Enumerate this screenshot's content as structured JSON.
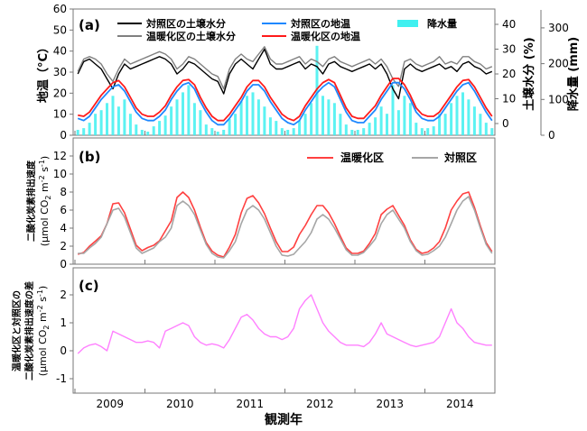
{
  "chart_data": [
    {
      "type": "line",
      "panel_label": "(a)",
      "x": [
        "2009-01",
        "2009-02",
        "2009-03",
        "2009-04",
        "2009-05",
        "2009-06",
        "2009-07",
        "2009-08",
        "2009-09",
        "2009-10",
        "2009-11",
        "2009-12",
        "2010-01",
        "2010-02",
        "2010-03",
        "2010-04",
        "2010-05",
        "2010-06",
        "2010-07",
        "2010-08",
        "2010-09",
        "2010-10",
        "2010-11",
        "2010-12",
        "2011-01",
        "2011-02",
        "2011-03",
        "2011-04",
        "2011-05",
        "2011-06",
        "2011-07",
        "2011-08",
        "2011-09",
        "2011-10",
        "2011-11",
        "2011-12",
        "2012-01",
        "2012-02",
        "2012-03",
        "2012-04",
        "2012-05",
        "2012-06",
        "2012-07",
        "2012-08",
        "2012-09",
        "2012-10",
        "2012-11",
        "2012-12",
        "2013-01",
        "2013-02",
        "2013-03",
        "2013-04",
        "2013-05",
        "2013-06",
        "2013-07",
        "2013-08",
        "2013-09",
        "2013-10",
        "2013-11",
        "2013-12",
        "2014-01",
        "2014-02",
        "2014-03",
        "2014-04",
        "2014-05",
        "2014-06",
        "2014-07",
        "2014-08",
        "2014-09",
        "2014-10",
        "2014-11",
        "2014-12"
      ],
      "ylabel_left": "地温（°C）",
      "ylabel_right": "土壌水分 (%)",
      "ylabel_right2": "降水量 (mm)",
      "ylim_left": [
        0,
        60
      ],
      "ylim_right": [
        0,
        45
      ],
      "ylim_right2": [
        0,
        350
      ],
      "yticks_left": [
        "0",
        "10",
        "20",
        "30",
        "40",
        "50",
        "60"
      ],
      "yticks_right": [
        "0",
        "10",
        "20",
        "30",
        "40"
      ],
      "yticks_right2": [
        "0",
        "100",
        "200",
        "300"
      ],
      "legend_placement": "top",
      "series": [
        {
          "name": "対照区の土壌水分",
          "axis": "right",
          "color": "#000000",
          "values": [
            20,
            25,
            26,
            24,
            22,
            18,
            14,
            20,
            24,
            22,
            23,
            24,
            25,
            26,
            27,
            26,
            24,
            20,
            22,
            25,
            24,
            22,
            20,
            18,
            17,
            12,
            20,
            24,
            26,
            24,
            22,
            26,
            30,
            24,
            22,
            22,
            23,
            24,
            25,
            22,
            24,
            23,
            20,
            24,
            25,
            23,
            22,
            21,
            22,
            23,
            24,
            22,
            24,
            20,
            14,
            10,
            22,
            24,
            22,
            21,
            22,
            23,
            24,
            22,
            23,
            21,
            24,
            25,
            23,
            22,
            20,
            21
          ]
        },
        {
          "name": "温暖化区の土壌水分",
          "axis": "right",
          "color": "#808080",
          "values": [
            21,
            26,
            27,
            26,
            24,
            20,
            17,
            22,
            26,
            24,
            25,
            26,
            27,
            28,
            29,
            28,
            26,
            22,
            24,
            27,
            26,
            24,
            22,
            20,
            19,
            14,
            22,
            26,
            28,
            26,
            25,
            28,
            31,
            26,
            24,
            24,
            25,
            26,
            27,
            24,
            26,
            25,
            23,
            26,
            27,
            25,
            24,
            23,
            24,
            25,
            26,
            24,
            26,
            23,
            18,
            15,
            25,
            26,
            24,
            23,
            24,
            25,
            27,
            24,
            25,
            24,
            27,
            27,
            25,
            24,
            22,
            23
          ]
        },
        {
          "name": "対照区の地温",
          "axis": "left",
          "color": "#1e88ff",
          "values": [
            8,
            7,
            9,
            13,
            17,
            20,
            23,
            24,
            21,
            16,
            11,
            8,
            7,
            7,
            9,
            12,
            17,
            21,
            24,
            25,
            22,
            16,
            11,
            7,
            5,
            5,
            8,
            12,
            16,
            21,
            24,
            24,
            21,
            16,
            12,
            8,
            6,
            5,
            7,
            12,
            16,
            20,
            23,
            25,
            23,
            17,
            11,
            7,
            6,
            6,
            9,
            12,
            17,
            21,
            25,
            25,
            22,
            17,
            11,
            8,
            7,
            7,
            9,
            13,
            17,
            21,
            24,
            25,
            21,
            16,
            11,
            7
          ]
        },
        {
          "name": "温暖化区の地温",
          "axis": "left",
          "color": "#ff1a1a",
          "values": [
            9.5,
            9,
            11,
            15,
            19,
            22,
            25,
            26,
            23,
            18,
            13,
            10,
            9,
            9,
            11,
            14,
            19,
            23,
            26,
            26.5,
            24,
            18,
            13,
            9,
            7,
            7,
            10,
            14,
            18,
            23,
            26,
            26,
            23,
            18,
            14,
            10,
            8,
            7,
            9,
            14,
            18,
            22,
            25,
            26.5,
            25,
            19,
            13,
            9,
            8,
            8,
            11,
            14,
            19,
            23,
            27,
            27,
            24,
            19,
            13,
            10,
            9,
            9,
            11,
            15,
            19,
            23,
            26,
            26.5,
            23,
            18,
            13,
            9
          ]
        },
        {
          "name": "降水量",
          "axis": "right2",
          "type": "bar",
          "color": "#40f0f0",
          "values": [
            15,
            20,
            35,
            60,
            70,
            90,
            110,
            80,
            100,
            60,
            30,
            15,
            10,
            25,
            40,
            55,
            80,
            100,
            120,
            140,
            90,
            70,
            30,
            20,
            10,
            15,
            45,
            60,
            95,
            110,
            120,
            100,
            80,
            50,
            40,
            20,
            15,
            20,
            40,
            60,
            90,
            250,
            110,
            100,
            90,
            60,
            30,
            15,
            15,
            20,
            35,
            50,
            80,
            60,
            140,
            70,
            110,
            90,
            35,
            20,
            20,
            25,
            60,
            60,
            90,
            110,
            120,
            100,
            80,
            60,
            35,
            20
          ]
        }
      ]
    },
    {
      "type": "line",
      "panel_label": "(b)",
      "ylabel": "二酸化炭素排出速度 (μmol CO2 m-2 s-1)",
      "ylabel_line1": "二酸化炭素排出速度",
      "ylabel_line2": "(μmol CO",
      "ylabel_sub": "2",
      "ylabel_mid": " m",
      "ylabel_sup1": "-2",
      "ylabel_mid2": " s",
      "ylabel_sup2": "-1",
      "ylabel_end": ")",
      "ylim": [
        0,
        14
      ],
      "yticks": [
        "0",
        "2",
        "4",
        "6",
        "8",
        "10",
        "12"
      ],
      "legend_placement": "top-right",
      "series": [
        {
          "name": "温暖化区",
          "color": "#ff4040",
          "values": [
            1.1,
            1.3,
            2.0,
            2.55,
            3.15,
            4.5,
            6.7,
            6.8,
            5.7,
            3.9,
            2.1,
            1.5,
            1.85,
            2.1,
            2.6,
            3.7,
            4.8,
            7.4,
            8.0,
            7.4,
            6.0,
            4.1,
            2.4,
            1.45,
            1.0,
            0.8,
            1.9,
            3.3,
            5.7,
            7.3,
            7.6,
            6.8,
            5.6,
            4.0,
            2.5,
            1.4,
            1.4,
            1.9,
            3.3,
            4.3,
            5.5,
            6.5,
            6.5,
            5.7,
            4.5,
            3.1,
            1.8,
            1.2,
            1.2,
            1.45,
            2.3,
            3.4,
            5.5,
            6.1,
            6.5,
            5.4,
            4.3,
            2.7,
            1.65,
            1.2,
            1.35,
            1.8,
            2.5,
            4.0,
            6.0,
            7.0,
            7.8,
            8.0,
            6.3,
            4.25,
            2.4,
            1.4
          ]
        },
        {
          "name": "対照区",
          "color": "#a6a6a6",
          "values": [
            1.2,
            1.2,
            1.8,
            2.3,
            3.0,
            4.5,
            6.0,
            6.2,
            5.2,
            3.5,
            1.8,
            1.2,
            1.5,
            1.8,
            2.5,
            3.0,
            4.0,
            6.5,
            7.0,
            6.5,
            5.5,
            3.8,
            2.2,
            1.2,
            0.8,
            0.7,
            1.5,
            2.5,
            4.5,
            6.0,
            6.5,
            6.0,
            5.0,
            3.5,
            2.0,
            1.0,
            0.9,
            1.1,
            1.8,
            2.5,
            3.5,
            5.0,
            5.5,
            5.0,
            4.0,
            2.8,
            1.6,
            1.0,
            1.0,
            1.3,
            2.0,
            2.8,
            4.5,
            5.5,
            6.0,
            5.0,
            4.0,
            2.5,
            1.5,
            1.0,
            1.1,
            1.5,
            2.0,
            3.0,
            4.5,
            6.0,
            7.0,
            7.5,
            6.0,
            4.0,
            2.2,
            1.2
          ]
        }
      ]
    },
    {
      "type": "line",
      "panel_label": "(c)",
      "ylabel_line0": "温暖化区と対照区の",
      "ylabel_line1": "二酸化炭素排出速度の差",
      "ylim": [
        -1.5,
        3
      ],
      "yticks": [
        "-1",
        "0",
        "1",
        "2"
      ],
      "xlabel": "観測年",
      "xticklabels": [
        "2009",
        "2010",
        "2011",
        "2012",
        "2013",
        "2014"
      ],
      "series": [
        {
          "color": "#ff80ff",
          "values": [
            -0.1,
            0.1,
            0.2,
            0.25,
            0.15,
            0.0,
            0.7,
            0.6,
            0.5,
            0.4,
            0.3,
            0.3,
            0.35,
            0.3,
            0.1,
            0.7,
            0.8,
            0.9,
            1.0,
            0.9,
            0.5,
            0.3,
            0.2,
            0.25,
            0.2,
            0.1,
            0.4,
            0.8,
            1.2,
            1.3,
            1.1,
            0.8,
            0.6,
            0.5,
            0.5,
            0.4,
            0.5,
            0.8,
            1.5,
            1.8,
            2.0,
            1.5,
            1.0,
            0.7,
            0.5,
            0.3,
            0.2,
            0.2,
            0.2,
            0.15,
            0.3,
            0.6,
            1.0,
            0.6,
            0.5,
            0.4,
            0.3,
            0.2,
            0.15,
            0.2,
            0.25,
            0.3,
            0.5,
            1.0,
            1.5,
            1.0,
            0.8,
            0.5,
            0.3,
            0.25,
            0.2,
            0.2
          ]
        }
      ]
    }
  ]
}
